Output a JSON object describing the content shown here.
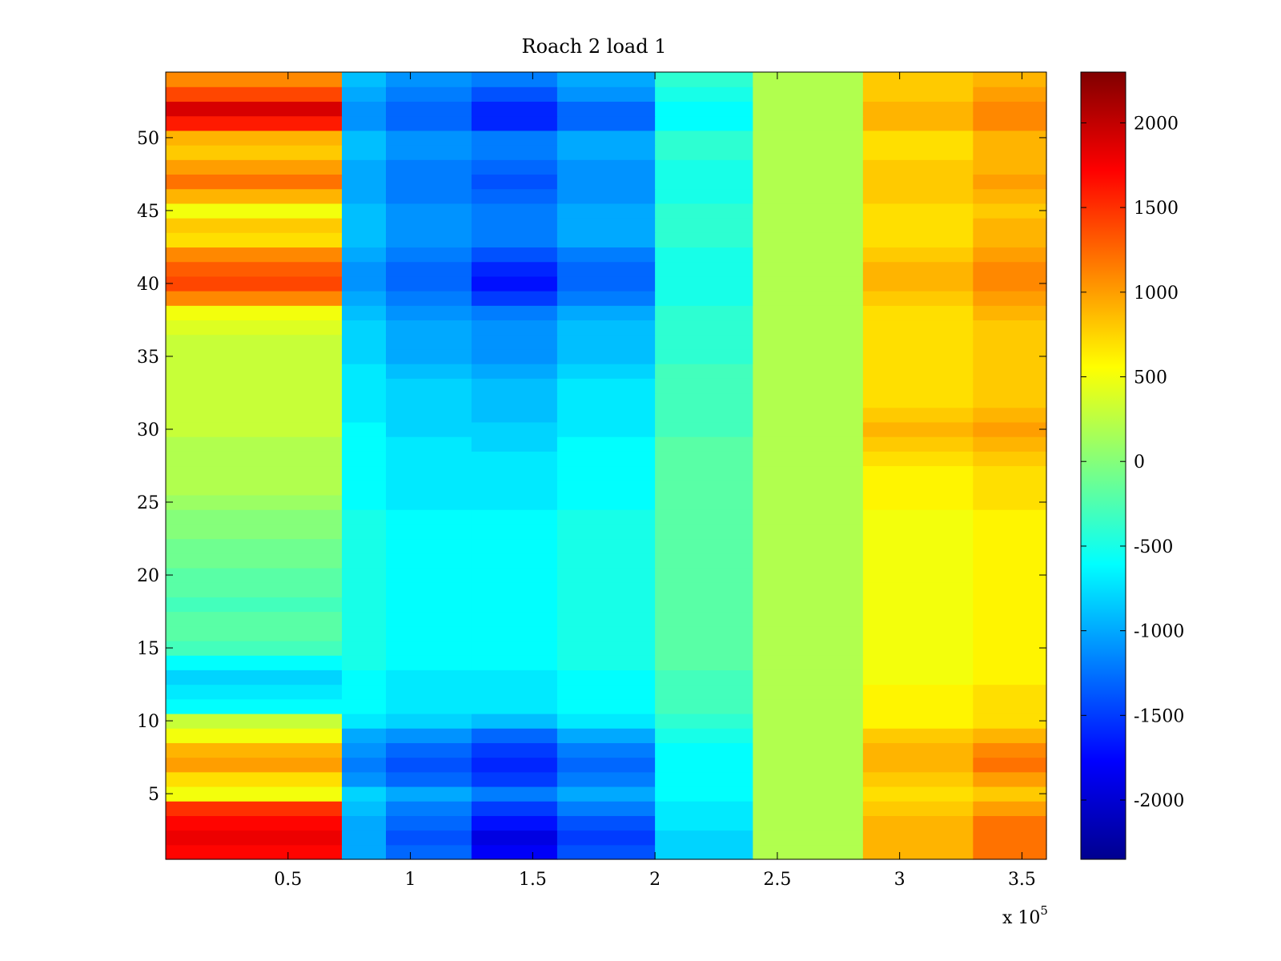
{
  "chart_data": {
    "type": "heatmap",
    "title": "Roach 2 load 1",
    "xlabel": "",
    "ylabel": "",
    "x_multiplier_label": "x 10",
    "x_multiplier_exponent": "5",
    "xlim": [
      0,
      360000
    ],
    "ylim": [
      0.5,
      54.5
    ],
    "xticks": [
      {
        "value": 50000,
        "label": "0.5"
      },
      {
        "value": 100000,
        "label": "1"
      },
      {
        "value": 150000,
        "label": "1.5"
      },
      {
        "value": 200000,
        "label": "2"
      },
      {
        "value": 250000,
        "label": "2.5"
      },
      {
        "value": 300000,
        "label": "3"
      },
      {
        "value": 350000,
        "label": "3.5"
      }
    ],
    "yticks": [
      {
        "value": 5,
        "label": "5"
      },
      {
        "value": 10,
        "label": "10"
      },
      {
        "value": 15,
        "label": "15"
      },
      {
        "value": 20,
        "label": "20"
      },
      {
        "value": 25,
        "label": "25"
      },
      {
        "value": 30,
        "label": "30"
      },
      {
        "value": 35,
        "label": "35"
      },
      {
        "value": 40,
        "label": "40"
      },
      {
        "value": 45,
        "label": "45"
      },
      {
        "value": 50,
        "label": "50"
      }
    ],
    "colorbar": {
      "colormap": "jet",
      "clim": [
        -2350,
        2300
      ],
      "ticks": [
        {
          "value": 2000,
          "label": "2000"
        },
        {
          "value": 1500,
          "label": "1500"
        },
        {
          "value": 1000,
          "label": "1000"
        },
        {
          "value": 500,
          "label": "500"
        },
        {
          "value": 0,
          "label": "0"
        },
        {
          "value": -500,
          "label": "-500"
        },
        {
          "value": -1000,
          "label": "-1000"
        },
        {
          "value": -1500,
          "label": "-1500"
        },
        {
          "value": -2000,
          "label": "-2000"
        }
      ]
    },
    "rows": 54,
    "x_bin_edges": [
      0,
      72000,
      90000,
      125000,
      160000,
      200000,
      240000,
      285000,
      330000,
      360000
    ],
    "rows_data": [
      {
        "y": 1,
        "values": [
          1700,
          -1000,
          -1300,
          -1800,
          -1400,
          -800,
          200,
          900,
          1200
        ]
      },
      {
        "y": 2,
        "values": [
          1800,
          -1000,
          -1400,
          -1900,
          -1500,
          -800,
          200,
          900,
          1200
        ]
      },
      {
        "y": 3,
        "values": [
          1700,
          -1000,
          -1300,
          -1700,
          -1400,
          -700,
          200,
          900,
          1200
        ]
      },
      {
        "y": 4,
        "values": [
          1500,
          -900,
          -1200,
          -1500,
          -1200,
          -700,
          200,
          800,
          1000
        ]
      },
      {
        "y": 5,
        "values": [
          500,
          -800,
          -1000,
          -1200,
          -1000,
          -600,
          200,
          700,
          800
        ]
      },
      {
        "y": 6,
        "values": [
          700,
          -1100,
          -1300,
          -1500,
          -1200,
          -600,
          200,
          800,
          1000
        ]
      },
      {
        "y": 7,
        "values": [
          1000,
          -1200,
          -1400,
          -1600,
          -1300,
          -600,
          200,
          900,
          1200
        ]
      },
      {
        "y": 8,
        "values": [
          900,
          -1100,
          -1300,
          -1500,
          -1200,
          -600,
          200,
          900,
          1100
        ]
      },
      {
        "y": 9,
        "values": [
          500,
          -1000,
          -1100,
          -1300,
          -1000,
          -500,
          200,
          800,
          900
        ]
      },
      {
        "y": 10,
        "values": [
          300,
          -700,
          -800,
          -900,
          -700,
          -400,
          200,
          600,
          700
        ]
      },
      {
        "y": 11,
        "values": [
          -600,
          -600,
          -700,
          -700,
          -600,
          -300,
          200,
          600,
          700
        ]
      },
      {
        "y": 12,
        "values": [
          -700,
          -600,
          -700,
          -700,
          -600,
          -300,
          200,
          600,
          700
        ]
      },
      {
        "y": 13,
        "values": [
          -800,
          -600,
          -700,
          -700,
          -600,
          -300,
          200,
          500,
          600
        ]
      },
      {
        "y": 14,
        "values": [
          -600,
          -500,
          -600,
          -600,
          -500,
          -200,
          200,
          500,
          600
        ]
      },
      {
        "y": 15,
        "values": [
          -300,
          -500,
          -600,
          -600,
          -500,
          -200,
          200,
          500,
          600
        ]
      },
      {
        "y": 16,
        "values": [
          -200,
          -500,
          -600,
          -600,
          -500,
          -200,
          200,
          500,
          600
        ]
      },
      {
        "y": 17,
        "values": [
          -200,
          -500,
          -600,
          -600,
          -500,
          -200,
          200,
          500,
          600
        ]
      },
      {
        "y": 18,
        "values": [
          -300,
          -500,
          -600,
          -600,
          -500,
          -200,
          200,
          500,
          600
        ]
      },
      {
        "y": 19,
        "values": [
          -200,
          -500,
          -600,
          -600,
          -500,
          -200,
          200,
          500,
          600
        ]
      },
      {
        "y": 20,
        "values": [
          -200,
          -500,
          -600,
          -600,
          -500,
          -200,
          200,
          500,
          600
        ]
      },
      {
        "y": 21,
        "values": [
          -100,
          -500,
          -600,
          -600,
          -500,
          -200,
          200,
          500,
          600
        ]
      },
      {
        "y": 22,
        "values": [
          -100,
          -500,
          -600,
          -600,
          -500,
          -200,
          200,
          500,
          600
        ]
      },
      {
        "y": 23,
        "values": [
          0,
          -500,
          -600,
          -600,
          -500,
          -200,
          200,
          500,
          600
        ]
      },
      {
        "y": 24,
        "values": [
          0,
          -500,
          -600,
          -600,
          -500,
          -200,
          200,
          500,
          600
        ]
      },
      {
        "y": 25,
        "values": [
          100,
          -600,
          -700,
          -700,
          -600,
          -200,
          200,
          600,
          700
        ]
      },
      {
        "y": 26,
        "values": [
          200,
          -600,
          -700,
          -700,
          -600,
          -200,
          200,
          600,
          700
        ]
      },
      {
        "y": 27,
        "values": [
          200,
          -600,
          -700,
          -700,
          -600,
          -200,
          200,
          600,
          700
        ]
      },
      {
        "y": 28,
        "values": [
          200,
          -600,
          -700,
          -700,
          -600,
          -200,
          200,
          700,
          800
        ]
      },
      {
        "y": 29,
        "values": [
          200,
          -600,
          -700,
          -800,
          -600,
          -200,
          200,
          800,
          900
        ]
      },
      {
        "y": 30,
        "values": [
          300,
          -600,
          -800,
          -800,
          -700,
          -300,
          200,
          900,
          1000
        ]
      },
      {
        "y": 31,
        "values": [
          300,
          -700,
          -800,
          -900,
          -700,
          -300,
          200,
          800,
          900
        ]
      },
      {
        "y": 32,
        "values": [
          300,
          -700,
          -800,
          -900,
          -700,
          -300,
          200,
          700,
          800
        ]
      },
      {
        "y": 33,
        "values": [
          300,
          -700,
          -800,
          -900,
          -700,
          -300,
          200,
          700,
          800
        ]
      },
      {
        "y": 34,
        "values": [
          300,
          -700,
          -900,
          -1000,
          -800,
          -300,
          200,
          700,
          800
        ]
      },
      {
        "y": 35,
        "values": [
          300,
          -800,
          -1000,
          -1100,
          -900,
          -400,
          200,
          700,
          800
        ]
      },
      {
        "y": 36,
        "values": [
          300,
          -800,
          -1000,
          -1100,
          -900,
          -400,
          200,
          700,
          800
        ]
      },
      {
        "y": 37,
        "values": [
          400,
          -800,
          -1000,
          -1100,
          -900,
          -400,
          200,
          700,
          800
        ]
      },
      {
        "y": 38,
        "values": [
          500,
          -900,
          -1100,
          -1200,
          -1000,
          -400,
          200,
          700,
          900
        ]
      },
      {
        "y": 39,
        "values": [
          1100,
          -1000,
          -1200,
          -1500,
          -1200,
          -500,
          200,
          800,
          1000
        ]
      },
      {
        "y": 40,
        "values": [
          1400,
          -1100,
          -1300,
          -1700,
          -1300,
          -500,
          200,
          900,
          1100
        ]
      },
      {
        "y": 41,
        "values": [
          1300,
          -1100,
          -1300,
          -1600,
          -1300,
          -500,
          200,
          900,
          1100
        ]
      },
      {
        "y": 42,
        "values": [
          1100,
          -1000,
          -1200,
          -1400,
          -1200,
          -500,
          200,
          800,
          1000
        ]
      },
      {
        "y": 43,
        "values": [
          700,
          -900,
          -1100,
          -1200,
          -1000,
          -400,
          200,
          700,
          900
        ]
      },
      {
        "y": 44,
        "values": [
          800,
          -900,
          -1100,
          -1200,
          -1000,
          -400,
          200,
          700,
          900
        ]
      },
      {
        "y": 45,
        "values": [
          500,
          -900,
          -1100,
          -1200,
          -1000,
          -400,
          200,
          700,
          800
        ]
      },
      {
        "y": 46,
        "values": [
          900,
          -1000,
          -1200,
          -1300,
          -1100,
          -500,
          200,
          800,
          900
        ]
      },
      {
        "y": 47,
        "values": [
          1200,
          -1000,
          -1200,
          -1400,
          -1100,
          -500,
          200,
          800,
          1000
        ]
      },
      {
        "y": 48,
        "values": [
          1000,
          -1000,
          -1200,
          -1300,
          -1100,
          -500,
          200,
          800,
          900
        ]
      },
      {
        "y": 49,
        "values": [
          800,
          -900,
          -1100,
          -1200,
          -1000,
          -400,
          200,
          700,
          900
        ]
      },
      {
        "y": 50,
        "values": [
          900,
          -900,
          -1100,
          -1200,
          -1000,
          -400,
          200,
          700,
          900
        ]
      },
      {
        "y": 51,
        "values": [
          1600,
          -1100,
          -1300,
          -1600,
          -1300,
          -600,
          200,
          900,
          1100
        ]
      },
      {
        "y": 52,
        "values": [
          1900,
          -1100,
          -1300,
          -1600,
          -1300,
          -600,
          200,
          900,
          1100
        ]
      },
      {
        "y": 53,
        "values": [
          1400,
          -1000,
          -1200,
          -1400,
          -1100,
          -500,
          200,
          800,
          1000
        ]
      },
      {
        "y": 54,
        "values": [
          1100,
          -900,
          -1100,
          -1200,
          -1000,
          -400,
          200,
          800,
          900
        ]
      }
    ]
  }
}
